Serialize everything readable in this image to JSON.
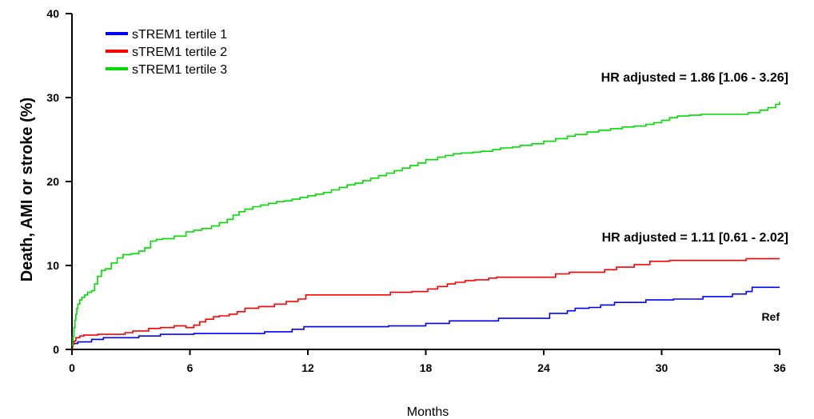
{
  "chart_data": {
    "type": "line",
    "step": true,
    "xlabel": "Months",
    "ylabel": "Death, AMI or stroke (%)",
    "xlim": [
      0,
      36
    ],
    "ylim": [
      0,
      40
    ],
    "xticks": [
      "0",
      "6",
      "12",
      "18",
      "24",
      "30",
      "36"
    ],
    "yticks": [
      "0",
      "10",
      "20",
      "30",
      "40"
    ],
    "grid": false,
    "legend_position": "top-left",
    "series": [
      {
        "name": "sTREM1 tertile 1",
        "color": "#0000ff",
        "x": [
          0,
          0.05,
          0.1,
          0.3,
          1.0,
          1.6,
          3.4,
          4.5,
          6.2,
          9.8,
          11.2,
          11.8,
          16.1,
          18.0,
          19.2,
          21.7,
          24.3,
          25.2,
          25.6,
          26.3,
          26.9,
          27.6,
          29.2,
          30.6,
          32.1,
          33.6,
          34.3,
          34.6,
          36.0
        ],
        "y": [
          0.5,
          0.6,
          0.7,
          0.9,
          1.2,
          1.4,
          1.6,
          1.8,
          1.9,
          2.1,
          2.4,
          2.7,
          2.8,
          3.1,
          3.4,
          3.7,
          4.3,
          4.6,
          4.9,
          5.0,
          5.3,
          5.6,
          5.9,
          6.0,
          6.3,
          6.6,
          6.9,
          7.4,
          7.4
        ]
      },
      {
        "name": "sTREM1 tertile 2",
        "color": "#ff0000",
        "x": [
          0,
          0.05,
          0.1,
          0.2,
          0.4,
          0.6,
          1.3,
          2.7,
          3.1,
          3.9,
          4.5,
          5.2,
          5.8,
          6.2,
          6.5,
          6.8,
          7.2,
          7.5,
          8.0,
          8.4,
          8.8,
          9.5,
          10.3,
          10.9,
          11.5,
          11.9,
          16.2,
          17.3,
          18.1,
          18.6,
          19.1,
          19.5,
          20.0,
          20.5,
          21.2,
          21.6,
          24.6,
          25.3,
          27.1,
          27.7,
          28.6,
          29.4,
          30.4,
          34.3,
          36.0
        ],
        "y": [
          0.3,
          0.6,
          1.0,
          1.4,
          1.6,
          1.7,
          1.8,
          2.0,
          2.2,
          2.5,
          2.6,
          2.8,
          2.6,
          2.9,
          3.3,
          3.6,
          3.9,
          4.0,
          4.2,
          4.5,
          4.9,
          5.1,
          5.4,
          5.7,
          6.0,
          6.5,
          6.8,
          6.9,
          7.2,
          7.5,
          7.8,
          8.0,
          8.2,
          8.3,
          8.5,
          8.6,
          9.0,
          9.2,
          9.5,
          9.8,
          10.1,
          10.5,
          10.6,
          10.8,
          10.8
        ]
      },
      {
        "name": "sTREM1 tertile 3",
        "color": "#00dd00",
        "x": [
          0,
          0.05,
          0.1,
          0.15,
          0.2,
          0.25,
          0.3,
          0.4,
          0.5,
          0.65,
          0.8,
          1.0,
          1.15,
          1.3,
          1.5,
          1.7,
          2.0,
          2.3,
          2.6,
          3.0,
          3.4,
          3.7,
          4.0,
          4.3,
          4.6,
          5.2,
          5.8,
          6.2,
          6.6,
          7.1,
          7.5,
          7.9,
          8.2,
          8.5,
          8.8,
          9.2,
          9.6,
          10.0,
          10.4,
          10.8,
          11.2,
          11.6,
          12.0,
          12.4,
          12.8,
          13.2,
          13.6,
          14.0,
          14.4,
          14.8,
          15.2,
          15.6,
          16.0,
          16.4,
          16.8,
          17.2,
          17.6,
          18.0,
          18.6,
          19.0,
          19.4,
          19.8,
          20.4,
          20.8,
          21.4,
          21.8,
          22.4,
          22.8,
          23.4,
          24.0,
          24.6,
          25.2,
          25.6,
          26.2,
          26.8,
          27.4,
          28.0,
          28.6,
          29.2,
          29.6,
          30.0,
          30.4,
          30.8,
          31.4,
          32.0,
          32.6,
          33.2,
          33.8,
          34.4,
          35.0,
          35.4,
          35.8,
          36.0
        ],
        "y": [
          0.5,
          1.5,
          2.6,
          3.5,
          4.2,
          4.9,
          5.4,
          5.9,
          6.2,
          6.5,
          6.8,
          7.0,
          7.8,
          8.7,
          9.4,
          9.6,
          10.3,
          10.9,
          11.3,
          11.4,
          11.7,
          12.1,
          12.9,
          13.1,
          13.2,
          13.5,
          14.0,
          14.2,
          14.4,
          14.7,
          15.1,
          15.5,
          16.0,
          16.4,
          16.7,
          17.0,
          17.2,
          17.4,
          17.6,
          17.7,
          17.9,
          18.1,
          18.3,
          18.5,
          18.7,
          19.0,
          19.3,
          19.6,
          19.8,
          20.1,
          20.4,
          20.7,
          21.0,
          21.3,
          21.6,
          21.9,
          22.2,
          22.6,
          22.9,
          23.1,
          23.3,
          23.4,
          23.5,
          23.6,
          23.8,
          24.0,
          24.1,
          24.3,
          24.5,
          24.8,
          25.1,
          25.4,
          25.6,
          25.9,
          26.1,
          26.3,
          26.5,
          26.6,
          26.8,
          27.0,
          27.3,
          27.6,
          27.8,
          27.9,
          28.0,
          28.0,
          28.0,
          28.0,
          28.2,
          28.5,
          28.8,
          29.2,
          29.5
        ]
      }
    ],
    "annotations": [
      {
        "text": "HR adjusted = 1.86 [1.06 - 3.26]"
      },
      {
        "text": "HR adjusted = 1.11 [0.61 - 2.02]"
      },
      {
        "text": "Ref"
      }
    ]
  }
}
